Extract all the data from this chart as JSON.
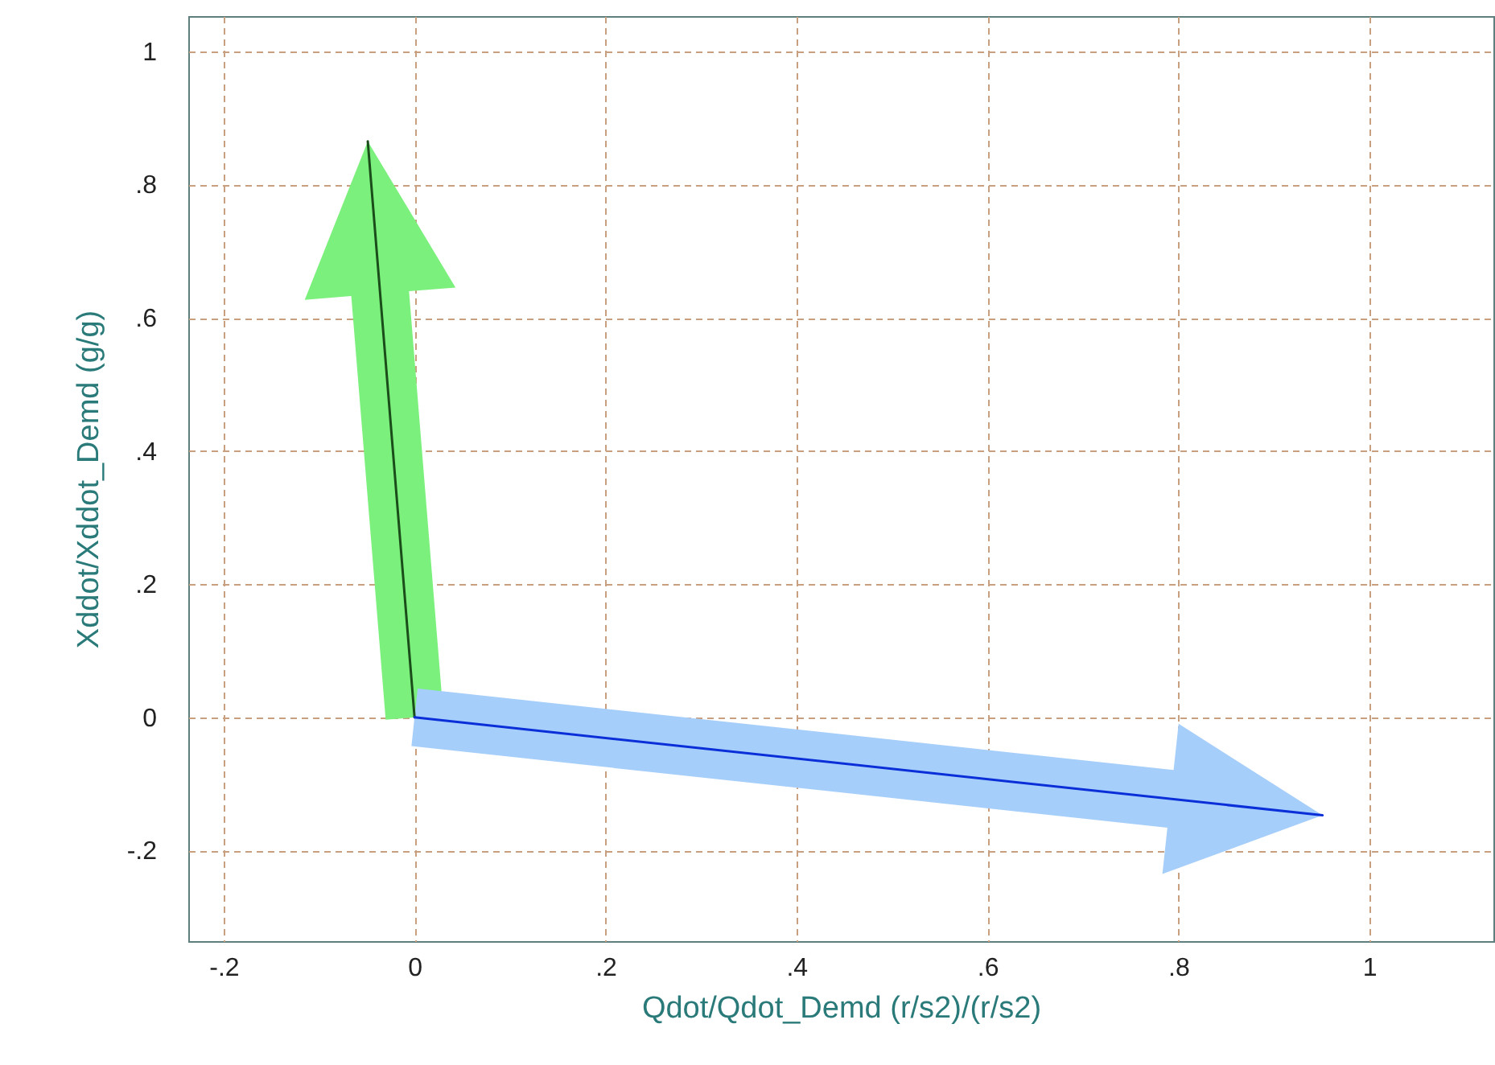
{
  "chart_data": {
    "type": "line",
    "xlabel": "Qdot/Qdot_Demd (r/s2)/(r/s2)",
    "ylabel": "Xddot/Xddot_Demd (g/g)",
    "xlim": [
      -0.237,
      1.13
    ],
    "ylim": [
      -0.336,
      1.053
    ],
    "xticks": [
      {
        "value": -0.2,
        "label": "-.2"
      },
      0,
      {
        "value": 0.2,
        "label": ".2"
      },
      {
        "value": 0.4,
        "label": ".4"
      },
      {
        "value": 0.6,
        "label": ".6"
      },
      {
        "value": 0.8,
        "label": ".8"
      },
      1
    ],
    "yticks": [
      {
        "value": -0.2,
        "label": "-.2"
      },
      0,
      {
        "value": 0.2,
        "label": ".2"
      },
      {
        "value": 0.4,
        "label": ".4"
      },
      {
        "value": 0.6,
        "label": ".6"
      },
      {
        "value": 0.8,
        "label": ".8"
      },
      1
    ],
    "grid": true,
    "marker": "none",
    "line_style": "solid",
    "series": [
      {
        "color": "#1a4d1a",
        "x": [
          0,
          -0.049
        ],
        "values": [
          0,
          0.865
        ]
      },
      {
        "color": "#0a2fd8",
        "x": [
          0,
          0.951
        ],
        "values": [
          0,
          -0.147
        ]
      }
    ]
  }
}
